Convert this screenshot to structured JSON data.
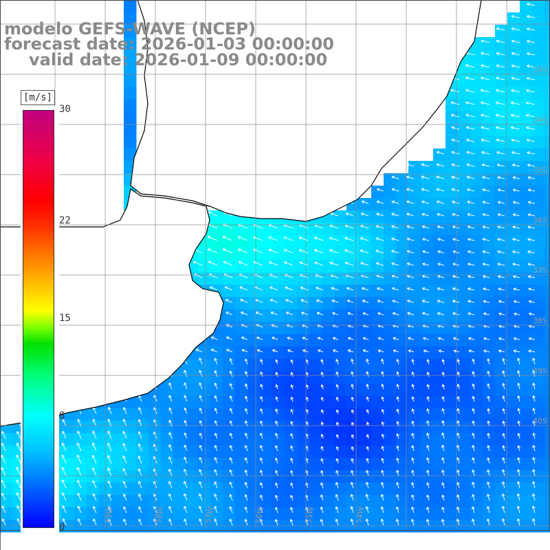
{
  "title": {
    "line1": "modelo GEFS-WAVE (NCEP)",
    "line2": "forecast date: 2026-01-03 00:00:00",
    "line3": "valid date: 2026-01-09 00:00:00"
  },
  "colorbar": {
    "units": "[m/s]",
    "ticks": [
      {
        "value": 30,
        "label": "30"
      },
      {
        "value": 22,
        "label": "22"
      },
      {
        "value": 15,
        "label": "15"
      },
      {
        "value": 8,
        "label": "8"
      },
      {
        "value": 0,
        "label": "0"
      }
    ],
    "range": [
      0,
      30
    ]
  },
  "map_labels": {
    "longitudes": [
      "59W",
      "58W",
      "57W",
      "56W",
      "55W",
      "54W"
    ],
    "latitudes": [
      "33S",
      "34S",
      "35S",
      "36S",
      "37S",
      "38S",
      "39S",
      "40S"
    ]
  },
  "colors": {
    "title": "#8a8a8a",
    "land": "#ffffff",
    "arrow": "#ffffff"
  }
}
